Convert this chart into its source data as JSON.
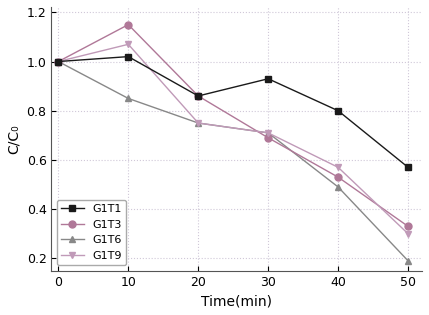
{
  "series": [
    {
      "label": "G1T1",
      "x": [
        0,
        10,
        20,
        30,
        40,
        50
      ],
      "y": [
        1.0,
        1.02,
        0.86,
        0.93,
        0.8,
        0.57
      ],
      "color": "#1a1a1a",
      "marker": "s",
      "linestyle": "-",
      "zorder": 4
    },
    {
      "label": "G1T3",
      "x": [
        0,
        10,
        20,
        30,
        40,
        50
      ],
      "y": [
        1.0,
        1.15,
        0.86,
        0.69,
        0.53,
        0.33
      ],
      "color": "#b07898",
      "marker": "o",
      "linestyle": "-",
      "zorder": 3
    },
    {
      "label": "G1T6",
      "x": [
        0,
        10,
        20,
        30,
        40,
        50
      ],
      "y": [
        1.0,
        0.85,
        0.75,
        0.71,
        0.49,
        0.19
      ],
      "color": "#888888",
      "marker": "^",
      "linestyle": "-",
      "zorder": 2
    },
    {
      "label": "G1T9",
      "x": [
        0,
        10,
        20,
        30,
        40,
        50
      ],
      "y": [
        1.0,
        1.07,
        0.75,
        0.71,
        0.57,
        0.3
      ],
      "color": "#c09ab8",
      "marker": "v",
      "linestyle": "-",
      "zorder": 3
    }
  ],
  "xlabel": "Time(min)",
  "ylabel": "C/C₀",
  "xlim": [
    -1,
    52
  ],
  "ylim": [
    0.15,
    1.22
  ],
  "xticks": [
    0,
    10,
    20,
    30,
    40,
    50
  ],
  "yticks": [
    0.2,
    0.4,
    0.6,
    0.8,
    1.0,
    1.2
  ],
  "grid": true,
  "grid_color": "#d0c8d8",
  "grid_linestyle": ":",
  "grid_linewidth": 0.8,
  "background_color": "#ffffff",
  "legend_loc": "lower left",
  "legend_fontsize": 8,
  "markersize": 5,
  "linewidth": 1.0,
  "tick_labelsize": 9,
  "xlabel_fontsize": 10,
  "ylabel_fontsize": 10,
  "spine_color": "#555555"
}
